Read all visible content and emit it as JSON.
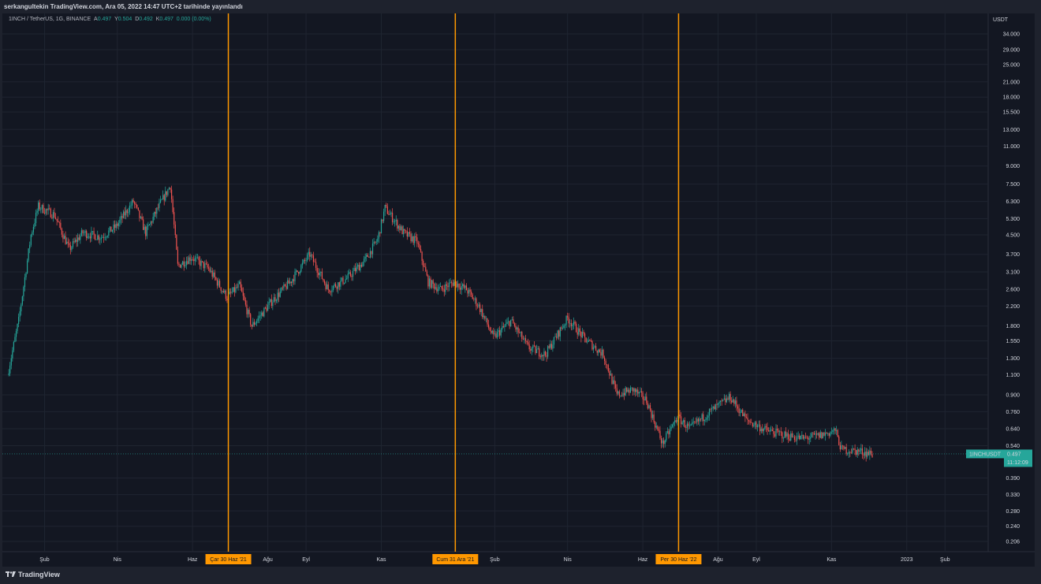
{
  "header": {
    "title": "serkangultekin TradingView.com, Ara 05, 2022 14:47 UTC+2 tarihinde yayınlandı"
  },
  "legend": {
    "symbol": "1INCH / TetherUS, 1G, BINANCE",
    "o_label": "A",
    "o_value": "0.497",
    "h_label": "Y",
    "h_value": "0.504",
    "l_label": "D",
    "l_value": "0.492",
    "c_label": "K",
    "c_value": "0.497",
    "change": "0.000 (0.00%)"
  },
  "footer": {
    "brand": "TradingView"
  },
  "price_badge": {
    "symbol": "1INCHUSDT",
    "price": "0.497",
    "countdown": "11:12:09"
  },
  "colors": {
    "up": "#26a69a",
    "down": "#ef5350",
    "marker": "#ff9800",
    "background": "#131722",
    "grid": "#1f2430"
  },
  "chart_data": {
    "type": "candlestick",
    "title": "1INCH / TetherUS, 1G, BINANCE",
    "y_axis_unit": "USDT",
    "y_scale": "log",
    "ylim": [
      0.18,
      40
    ],
    "y_ticks": [
      "34.000",
      "29.000",
      "25.000",
      "21.000",
      "18.000",
      "15.500",
      "13.000",
      "11.000",
      "9.000",
      "7.500",
      "6.300",
      "5.300",
      "4.500",
      "3.700",
      "3.100",
      "2.600",
      "2.200",
      "1.800",
      "1.550",
      "1.300",
      "1.100",
      "0.900",
      "0.760",
      "0.640",
      "0.540",
      "0.390",
      "0.330",
      "0.280",
      "0.240",
      "0.206"
    ],
    "x_ticks": [
      "Şub",
      "Nis",
      "Haz",
      "Ağu",
      "Eyl",
      "Kas",
      "Şub",
      "Nis",
      "Haz",
      "Ağu",
      "Eyl",
      "Kas",
      "2023",
      "Şub"
    ],
    "x_tick_dates": [
      "2021-02-01",
      "2021-04-01",
      "2021-06-01",
      "2021-08-01",
      "2021-09-01",
      "2021-11-01",
      "2022-02-01",
      "2022-04-01",
      "2022-06-01",
      "2022-08-01",
      "2022-09-01",
      "2022-11-01",
      "2023-01-01",
      "2023-02-01"
    ],
    "vertical_markers": [
      {
        "label": "Çar 30 Haz '21",
        "date": "2021-06-30"
      },
      {
        "label": "Cum 31 Ara '21",
        "date": "2021-12-31"
      },
      {
        "label": "Per 30 Haz '22",
        "date": "2022-06-30"
      }
    ],
    "last_price": 0.497,
    "price_path": [
      [
        "2021-01-03",
        1.1
      ],
      [
        "2021-01-12",
        1.9
      ],
      [
        "2021-01-22",
        4.5
      ],
      [
        "2021-01-28",
        6.0
      ],
      [
        "2021-02-10",
        5.5
      ],
      [
        "2021-02-22",
        3.9
      ],
      [
        "2021-03-05",
        4.6
      ],
      [
        "2021-03-20",
        4.4
      ],
      [
        "2021-04-01",
        4.9
      ],
      [
        "2021-04-15",
        6.3
      ],
      [
        "2021-04-25",
        4.6
      ],
      [
        "2021-05-05",
        5.9
      ],
      [
        "2021-05-15",
        7.4
      ],
      [
        "2021-05-21",
        3.3
      ],
      [
        "2021-06-01",
        3.6
      ],
      [
        "2021-06-15",
        3.2
      ],
      [
        "2021-06-30",
        2.4
      ],
      [
        "2021-07-10",
        2.7
      ],
      [
        "2021-07-20",
        1.8
      ],
      [
        "2021-08-05",
        2.3
      ],
      [
        "2021-08-20",
        2.8
      ],
      [
        "2021-09-05",
        3.7
      ],
      [
        "2021-09-20",
        2.6
      ],
      [
        "2021-10-05",
        2.9
      ],
      [
        "2021-10-20",
        3.5
      ],
      [
        "2021-10-30",
        4.3
      ],
      [
        "2021-11-05",
        5.9
      ],
      [
        "2021-11-20",
        4.6
      ],
      [
        "2021-12-01",
        4.2
      ],
      [
        "2021-12-10",
        2.8
      ],
      [
        "2021-12-20",
        2.6
      ],
      [
        "2021-12-31",
        2.8
      ],
      [
        "2022-01-10",
        2.6
      ],
      [
        "2022-01-20",
        2.2
      ],
      [
        "2022-02-01",
        1.6
      ],
      [
        "2022-02-15",
        1.9
      ],
      [
        "2022-03-01",
        1.45
      ],
      [
        "2022-03-15",
        1.35
      ],
      [
        "2022-04-02",
        1.95
      ],
      [
        "2022-04-15",
        1.6
      ],
      [
        "2022-05-01",
        1.35
      ],
      [
        "2022-05-12",
        0.9
      ],
      [
        "2022-05-25",
        0.95
      ],
      [
        "2022-06-05",
        0.85
      ],
      [
        "2022-06-18",
        0.55
      ],
      [
        "2022-06-30",
        0.72
      ],
      [
        "2022-07-10",
        0.64
      ],
      [
        "2022-07-25",
        0.75
      ],
      [
        "2022-08-12",
        0.88
      ],
      [
        "2022-08-25",
        0.7
      ],
      [
        "2022-09-10",
        0.63
      ],
      [
        "2022-09-25",
        0.6
      ],
      [
        "2022-10-10",
        0.58
      ],
      [
        "2022-10-25",
        0.6
      ],
      [
        "2022-11-05",
        0.63
      ],
      [
        "2022-11-10",
        0.52
      ],
      [
        "2022-11-25",
        0.51
      ],
      [
        "2022-12-05",
        0.497
      ]
    ]
  }
}
